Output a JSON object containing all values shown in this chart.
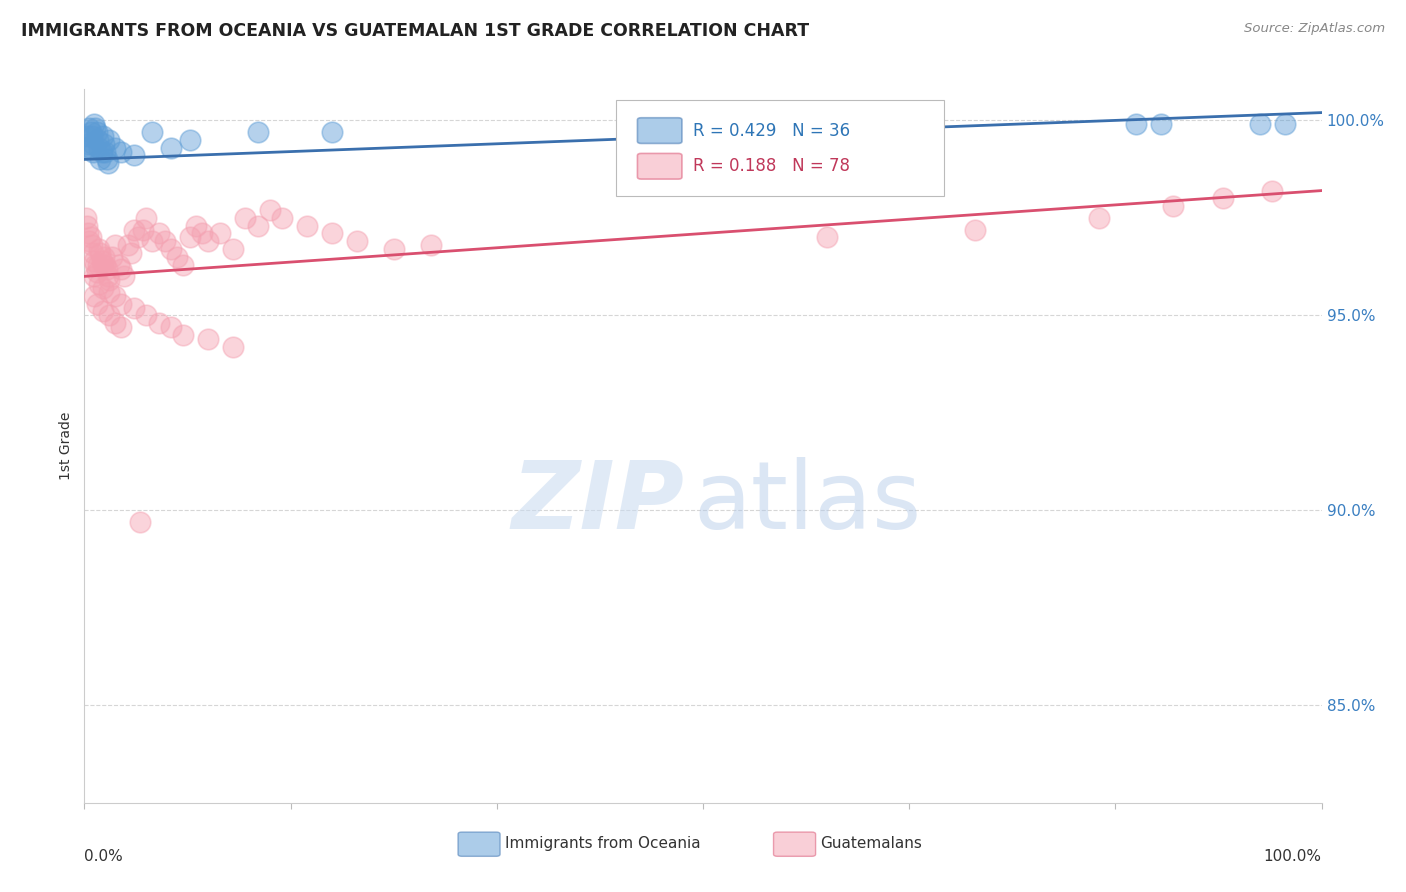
{
  "title": "IMMIGRANTS FROM OCEANIA VS GUATEMALAN 1ST GRADE CORRELATION CHART",
  "source": "Source: ZipAtlas.com",
  "ylabel": "1st Grade",
  "right_yticks": [
    "100.0%",
    "95.0%",
    "90.0%",
    "85.0%"
  ],
  "right_ytick_vals": [
    1.0,
    0.95,
    0.9,
    0.85
  ],
  "ymin": 0.825,
  "ymax": 1.008,
  "xmin": 0.0,
  "xmax": 1.0,
  "legend_blue_r": "0.429",
  "legend_blue_n": "36",
  "legend_pink_r": "0.188",
  "legend_pink_n": "78",
  "blue_color": "#5b9bd5",
  "pink_color": "#f4a0b0",
  "blue_line_color": "#3a6fad",
  "pink_line_color": "#d94f6f",
  "blue_line_start_y": 0.99,
  "blue_line_end_y": 1.002,
  "pink_line_start_y": 0.96,
  "pink_line_end_y": 0.982,
  "blue_x": [
    0.001,
    0.002,
    0.003,
    0.004,
    0.005,
    0.005,
    0.006,
    0.007,
    0.007,
    0.008,
    0.009,
    0.01,
    0.011,
    0.012,
    0.013,
    0.014,
    0.015,
    0.016,
    0.017,
    0.018,
    0.019,
    0.02,
    0.025,
    0.03,
    0.04,
    0.055,
    0.07,
    0.085,
    0.14,
    0.2,
    0.5,
    0.67,
    0.85,
    0.87,
    0.95,
    0.97
  ],
  "blue_y": [
    0.993,
    0.996,
    0.994,
    0.998,
    0.997,
    0.993,
    0.996,
    0.994,
    0.992,
    0.999,
    0.998,
    0.997,
    0.995,
    0.993,
    0.99,
    0.992,
    0.996,
    0.994,
    0.992,
    0.99,
    0.989,
    0.995,
    0.993,
    0.992,
    0.991,
    0.997,
    0.993,
    0.995,
    0.997,
    0.997,
    0.998,
    0.999,
    0.999,
    0.999,
    0.999,
    0.999
  ],
  "pink_x": [
    0.001,
    0.002,
    0.003,
    0.004,
    0.005,
    0.006,
    0.007,
    0.008,
    0.009,
    0.01,
    0.011,
    0.012,
    0.013,
    0.014,
    0.015,
    0.016,
    0.017,
    0.018,
    0.019,
    0.02,
    0.022,
    0.025,
    0.028,
    0.03,
    0.032,
    0.035,
    0.038,
    0.04,
    0.043,
    0.047,
    0.05,
    0.055,
    0.06,
    0.065,
    0.07,
    0.075,
    0.08,
    0.085,
    0.09,
    0.095,
    0.1,
    0.11,
    0.12,
    0.13,
    0.14,
    0.15,
    0.16,
    0.18,
    0.2,
    0.22,
    0.25,
    0.28,
    0.008,
    0.012,
    0.015,
    0.02,
    0.025,
    0.03,
    0.04,
    0.05,
    0.06,
    0.07,
    0.08,
    0.1,
    0.12,
    0.008,
    0.01,
    0.015,
    0.02,
    0.025,
    0.03,
    0.045,
    0.6,
    0.72,
    0.82,
    0.88,
    0.92,
    0.96
  ],
  "pink_y": [
    0.975,
    0.973,
    0.971,
    0.969,
    0.97,
    0.968,
    0.966,
    0.964,
    0.963,
    0.961,
    0.963,
    0.967,
    0.966,
    0.964,
    0.963,
    0.965,
    0.963,
    0.962,
    0.96,
    0.959,
    0.965,
    0.968,
    0.963,
    0.962,
    0.96,
    0.968,
    0.966,
    0.972,
    0.97,
    0.972,
    0.975,
    0.969,
    0.971,
    0.969,
    0.967,
    0.965,
    0.963,
    0.97,
    0.973,
    0.971,
    0.969,
    0.971,
    0.967,
    0.975,
    0.973,
    0.977,
    0.975,
    0.973,
    0.971,
    0.969,
    0.967,
    0.968,
    0.96,
    0.958,
    0.957,
    0.956,
    0.955,
    0.953,
    0.952,
    0.95,
    0.948,
    0.947,
    0.945,
    0.944,
    0.942,
    0.955,
    0.953,
    0.951,
    0.95,
    0.948,
    0.947,
    0.897,
    0.97,
    0.972,
    0.975,
    0.978,
    0.98,
    0.982
  ]
}
